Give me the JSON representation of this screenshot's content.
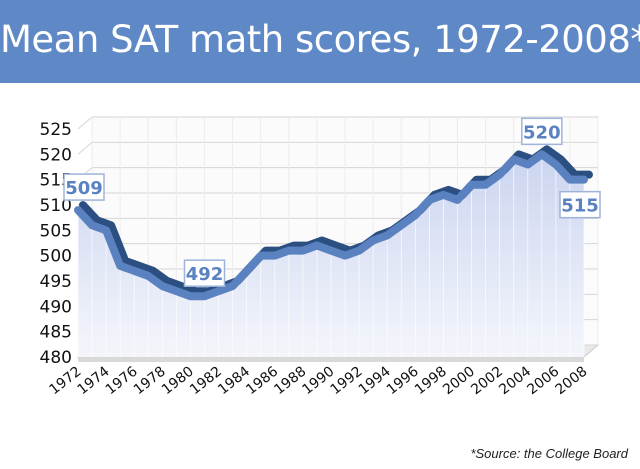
{
  "header": {
    "title": "Mean SAT math scores, 1972-2008*"
  },
  "footer": {
    "source": "*Source: the College Board"
  },
  "colors": {
    "banner": "#5f88c6",
    "line_top": "#5b82c0",
    "line_shadow": "#2c4f82",
    "area_fill": "#dfe5f6",
    "grid": "#d6d6d6",
    "callout_text": "#5b82c0"
  },
  "chart_data": {
    "type": "line",
    "title": "Mean SAT math scores, 1972-2008*",
    "xlabel": "",
    "ylabel": "",
    "ylim": [
      480,
      525
    ],
    "yticks": [
      480,
      485,
      490,
      495,
      500,
      505,
      510,
      515,
      520,
      525
    ],
    "xtick_labels": [
      "1972",
      "1974",
      "1976",
      "1978",
      "1980",
      "1982",
      "1984",
      "1986",
      "1988",
      "1990",
      "1992",
      "1994",
      "1996",
      "1998",
      "2000",
      "2002",
      "2004",
      "2006",
      "2008"
    ],
    "x": [
      1972,
      1973,
      1974,
      1975,
      1976,
      1977,
      1978,
      1979,
      1980,
      1981,
      1982,
      1983,
      1984,
      1985,
      1986,
      1987,
      1988,
      1989,
      1990,
      1991,
      1992,
      1993,
      1994,
      1995,
      1996,
      1997,
      1998,
      1999,
      2000,
      2001,
      2002,
      2003,
      2004,
      2005,
      2006,
      2007,
      2008
    ],
    "values": [
      509,
      506,
      505,
      498,
      497,
      496,
      494,
      493,
      492,
      492,
      493,
      494,
      497,
      500,
      500,
      501,
      501,
      502,
      501,
      500,
      501,
      503,
      504,
      506,
      508,
      511,
      512,
      511,
      514,
      514,
      516,
      519,
      518,
      520,
      518,
      515,
      515
    ],
    "annotations": [
      {
        "x": 1972,
        "value": 509,
        "label": "509",
        "placement": "above"
      },
      {
        "x": 1981,
        "value": 492,
        "label": "492",
        "placement": "above"
      },
      {
        "x": 2005,
        "value": 520,
        "label": "520",
        "placement": "above"
      },
      {
        "x": 2008,
        "value": 515,
        "label": "515",
        "placement": "below"
      }
    ],
    "grid": true,
    "legend": "none"
  }
}
